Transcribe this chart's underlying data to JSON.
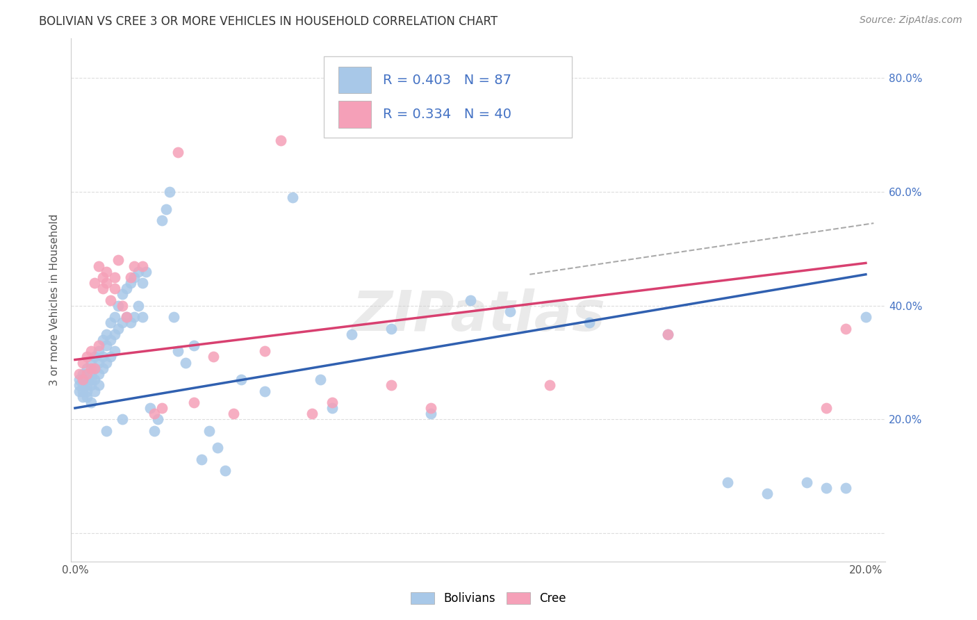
{
  "title": "BOLIVIAN VS CREE 3 OR MORE VEHICLES IN HOUSEHOLD CORRELATION CHART",
  "source": "Source: ZipAtlas.com",
  "ylabel": "3 or more Vehicles in Household",
  "xlim": [
    -0.001,
    0.205
  ],
  "ylim": [
    -0.05,
    0.87
  ],
  "bolivian_R": 0.403,
  "bolivian_N": 87,
  "cree_R": 0.334,
  "cree_N": 40,
  "bolivian_color": "#a8c8e8",
  "cree_color": "#f5a0b8",
  "bolivian_line_color": "#3060b0",
  "cree_line_color": "#d84070",
  "dashed_line_color": "#aaaaaa",
  "watermark": "ZIPatlas",
  "grid_color": "#dddddd",
  "title_color": "#333333",
  "source_color": "#888888",
  "tick_color": "#4472c4",
  "ylabel_color": "#555555",
  "legend_text_color": "#4472c4",
  "bolivian_line": [
    0.0,
    0.22,
    0.2,
    0.455
  ],
  "cree_line": [
    0.0,
    0.305,
    0.2,
    0.475
  ],
  "dashed_line": [
    0.115,
    0.455,
    0.202,
    0.545
  ]
}
